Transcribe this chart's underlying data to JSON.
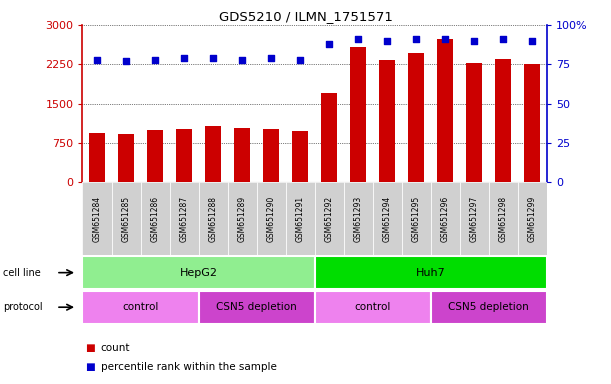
{
  "title": "GDS5210 / ILMN_1751571",
  "samples": [
    "GSM651284",
    "GSM651285",
    "GSM651286",
    "GSM651287",
    "GSM651288",
    "GSM651289",
    "GSM651290",
    "GSM651291",
    "GSM651292",
    "GSM651293",
    "GSM651294",
    "GSM651295",
    "GSM651296",
    "GSM651297",
    "GSM651298",
    "GSM651299"
  ],
  "counts": [
    950,
    920,
    1000,
    1020,
    1080,
    1040,
    1010,
    980,
    1700,
    2580,
    2330,
    2470,
    2730,
    2280,
    2350,
    2260
  ],
  "percentiles": [
    78,
    77,
    78,
    79,
    79,
    78,
    79,
    78,
    88,
    91,
    90,
    91,
    91,
    90,
    91,
    90
  ],
  "bar_color": "#cc0000",
  "dot_color": "#0000cc",
  "left_ylim": [
    0,
    3000
  ],
  "right_ylim": [
    0,
    100
  ],
  "left_yticks": [
    0,
    750,
    1500,
    2250,
    3000
  ],
  "right_yticks": [
    0,
    25,
    50,
    75,
    100
  ],
  "right_yticklabels": [
    "0",
    "25",
    "50",
    "75",
    "100%"
  ],
  "cell_line_groups": [
    {
      "label": "HepG2",
      "start": 0,
      "end": 8,
      "color": "#90ee90"
    },
    {
      "label": "Huh7",
      "start": 8,
      "end": 16,
      "color": "#00dd00"
    }
  ],
  "protocol_groups": [
    {
      "label": "control",
      "start": 0,
      "end": 4,
      "color": "#ee82ee"
    },
    {
      "label": "CSN5 depletion",
      "start": 4,
      "end": 8,
      "color": "#cc44cc"
    },
    {
      "label": "control",
      "start": 8,
      "end": 12,
      "color": "#ee82ee"
    },
    {
      "label": "CSN5 depletion",
      "start": 12,
      "end": 16,
      "color": "#cc44cc"
    }
  ],
  "legend_items": [
    {
      "label": "count",
      "color": "#cc0000"
    },
    {
      "label": "percentile rank within the sample",
      "color": "#0000cc"
    }
  ],
  "bg_color": "#ffffff",
  "plot_bg_color": "#ffffff",
  "tick_label_color_left": "#cc0000",
  "tick_label_color_right": "#0000cc",
  "cell_line_label": "cell line",
  "protocol_label": "protocol"
}
